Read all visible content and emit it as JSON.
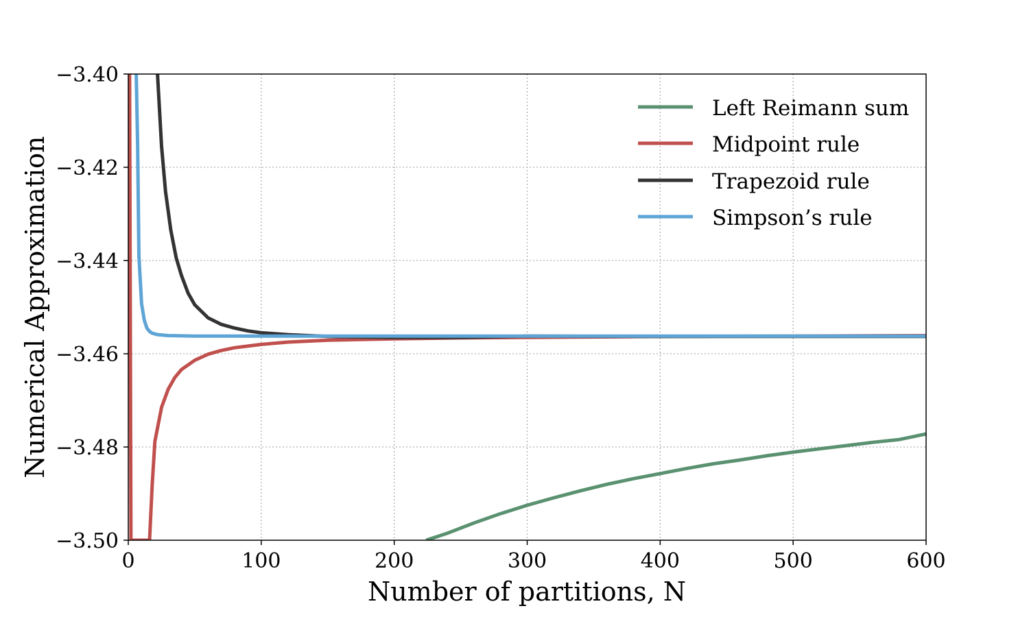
{
  "chart_data": {
    "type": "line",
    "title": "",
    "xlabel": "Number of partitions, N",
    "ylabel": "Numerical Approximation",
    "xlim": [
      0,
      600
    ],
    "ylim": [
      -3.5,
      -3.4
    ],
    "x_ticks": [
      0,
      100,
      200,
      300,
      400,
      500,
      600
    ],
    "x_tick_labels": [
      "0",
      "100",
      "200",
      "300",
      "400",
      "500",
      "600"
    ],
    "y_ticks": [
      -3.5,
      -3.48,
      -3.46,
      -3.44,
      -3.42,
      -3.4
    ],
    "y_tick_labels": [
      "−3.50",
      "−3.48",
      "−3.46",
      "−3.44",
      "−3.42",
      "−3.40"
    ],
    "grid": true,
    "legend_position": "top-right",
    "series": [
      {
        "name": "Left Reimann sum",
        "color": "#5a9170",
        "points": [
          [
            224,
            -3.5
          ],
          [
            240,
            -3.4985
          ],
          [
            260,
            -3.4963
          ],
          [
            280,
            -3.4943
          ],
          [
            300,
            -3.4925
          ],
          [
            320,
            -3.4909
          ],
          [
            340,
            -3.4894
          ],
          [
            360,
            -3.488
          ],
          [
            380,
            -3.4868
          ],
          [
            400,
            -3.4857
          ],
          [
            420,
            -3.4846
          ],
          [
            440,
            -3.4836
          ],
          [
            460,
            -3.4828
          ],
          [
            480,
            -3.4819
          ],
          [
            500,
            -3.4811
          ],
          [
            520,
            -3.4804
          ],
          [
            540,
            -3.4797
          ],
          [
            560,
            -3.479
          ],
          [
            580,
            -3.4784
          ],
          [
            600,
            -3.4772
          ]
        ]
      },
      {
        "name": "Midpoint rule",
        "color": "#c0504d",
        "points": [
          [
            1,
            -3.4
          ],
          [
            1.5,
            -3.45
          ],
          [
            2,
            -3.5
          ],
          [
            16,
            -3.5
          ],
          [
            18,
            -3.488
          ],
          [
            20,
            -3.4788
          ],
          [
            25,
            -3.4715
          ],
          [
            30,
            -3.4676
          ],
          [
            35,
            -3.4651
          ],
          [
            40,
            -3.4634
          ],
          [
            50,
            -3.4614
          ],
          [
            60,
            -3.4601
          ],
          [
            70,
            -3.4593
          ],
          [
            80,
            -3.4587
          ],
          [
            100,
            -3.458
          ],
          [
            120,
            -3.4575
          ],
          [
            150,
            -3.4571
          ],
          [
            200,
            -3.4568
          ],
          [
            250,
            -3.4566
          ],
          [
            300,
            -3.4565
          ],
          [
            400,
            -3.4563
          ],
          [
            500,
            -3.4562
          ],
          [
            600,
            -3.4561
          ]
        ]
      },
      {
        "name": "Trapezoid rule",
        "color": "#333333",
        "points": [
          [
            22,
            -3.4
          ],
          [
            25,
            -3.4155
          ],
          [
            28,
            -3.4252
          ],
          [
            32,
            -3.4335
          ],
          [
            36,
            -3.4394
          ],
          [
            40,
            -3.4432
          ],
          [
            45,
            -3.447
          ],
          [
            50,
            -3.4495
          ],
          [
            60,
            -3.4523
          ],
          [
            70,
            -3.4537
          ],
          [
            80,
            -3.4545
          ],
          [
            90,
            -3.4551
          ],
          [
            100,
            -3.4555
          ],
          [
            120,
            -3.4559
          ],
          [
            150,
            -3.4563
          ],
          [
            200,
            -3.4565
          ],
          [
            250,
            -3.4565
          ],
          [
            300,
            -3.4562
          ],
          [
            400,
            -3.4563
          ],
          [
            500,
            -3.4563
          ],
          [
            600,
            -3.4563
          ]
        ]
      },
      {
        "name": "Simpson's rule",
        "color": "#5ea5d6",
        "points": [
          [
            6,
            -3.4
          ],
          [
            7,
            -3.415
          ],
          [
            8,
            -3.439
          ],
          [
            10,
            -3.4493
          ],
          [
            12,
            -3.4528
          ],
          [
            14,
            -3.4545
          ],
          [
            16,
            -3.4552
          ],
          [
            18,
            -3.4556
          ],
          [
            22,
            -3.4559
          ],
          [
            30,
            -3.4561
          ],
          [
            50,
            -3.4562
          ],
          [
            100,
            -3.4562
          ],
          [
            200,
            -3.4562
          ],
          [
            300,
            -3.4562
          ],
          [
            400,
            -3.4562
          ],
          [
            500,
            -3.4562
          ],
          [
            600,
            -3.4562
          ]
        ]
      }
    ]
  },
  "legend": {
    "items": [
      {
        "label": "Left Reimann sum",
        "color": "#5a9170"
      },
      {
        "label": "Midpoint rule",
        "color": "#c0504d"
      },
      {
        "label": "Trapezoid rule",
        "color": "#333333"
      },
      {
        "label": "Simpson’s rule",
        "color": "#5ea5d6"
      }
    ]
  }
}
